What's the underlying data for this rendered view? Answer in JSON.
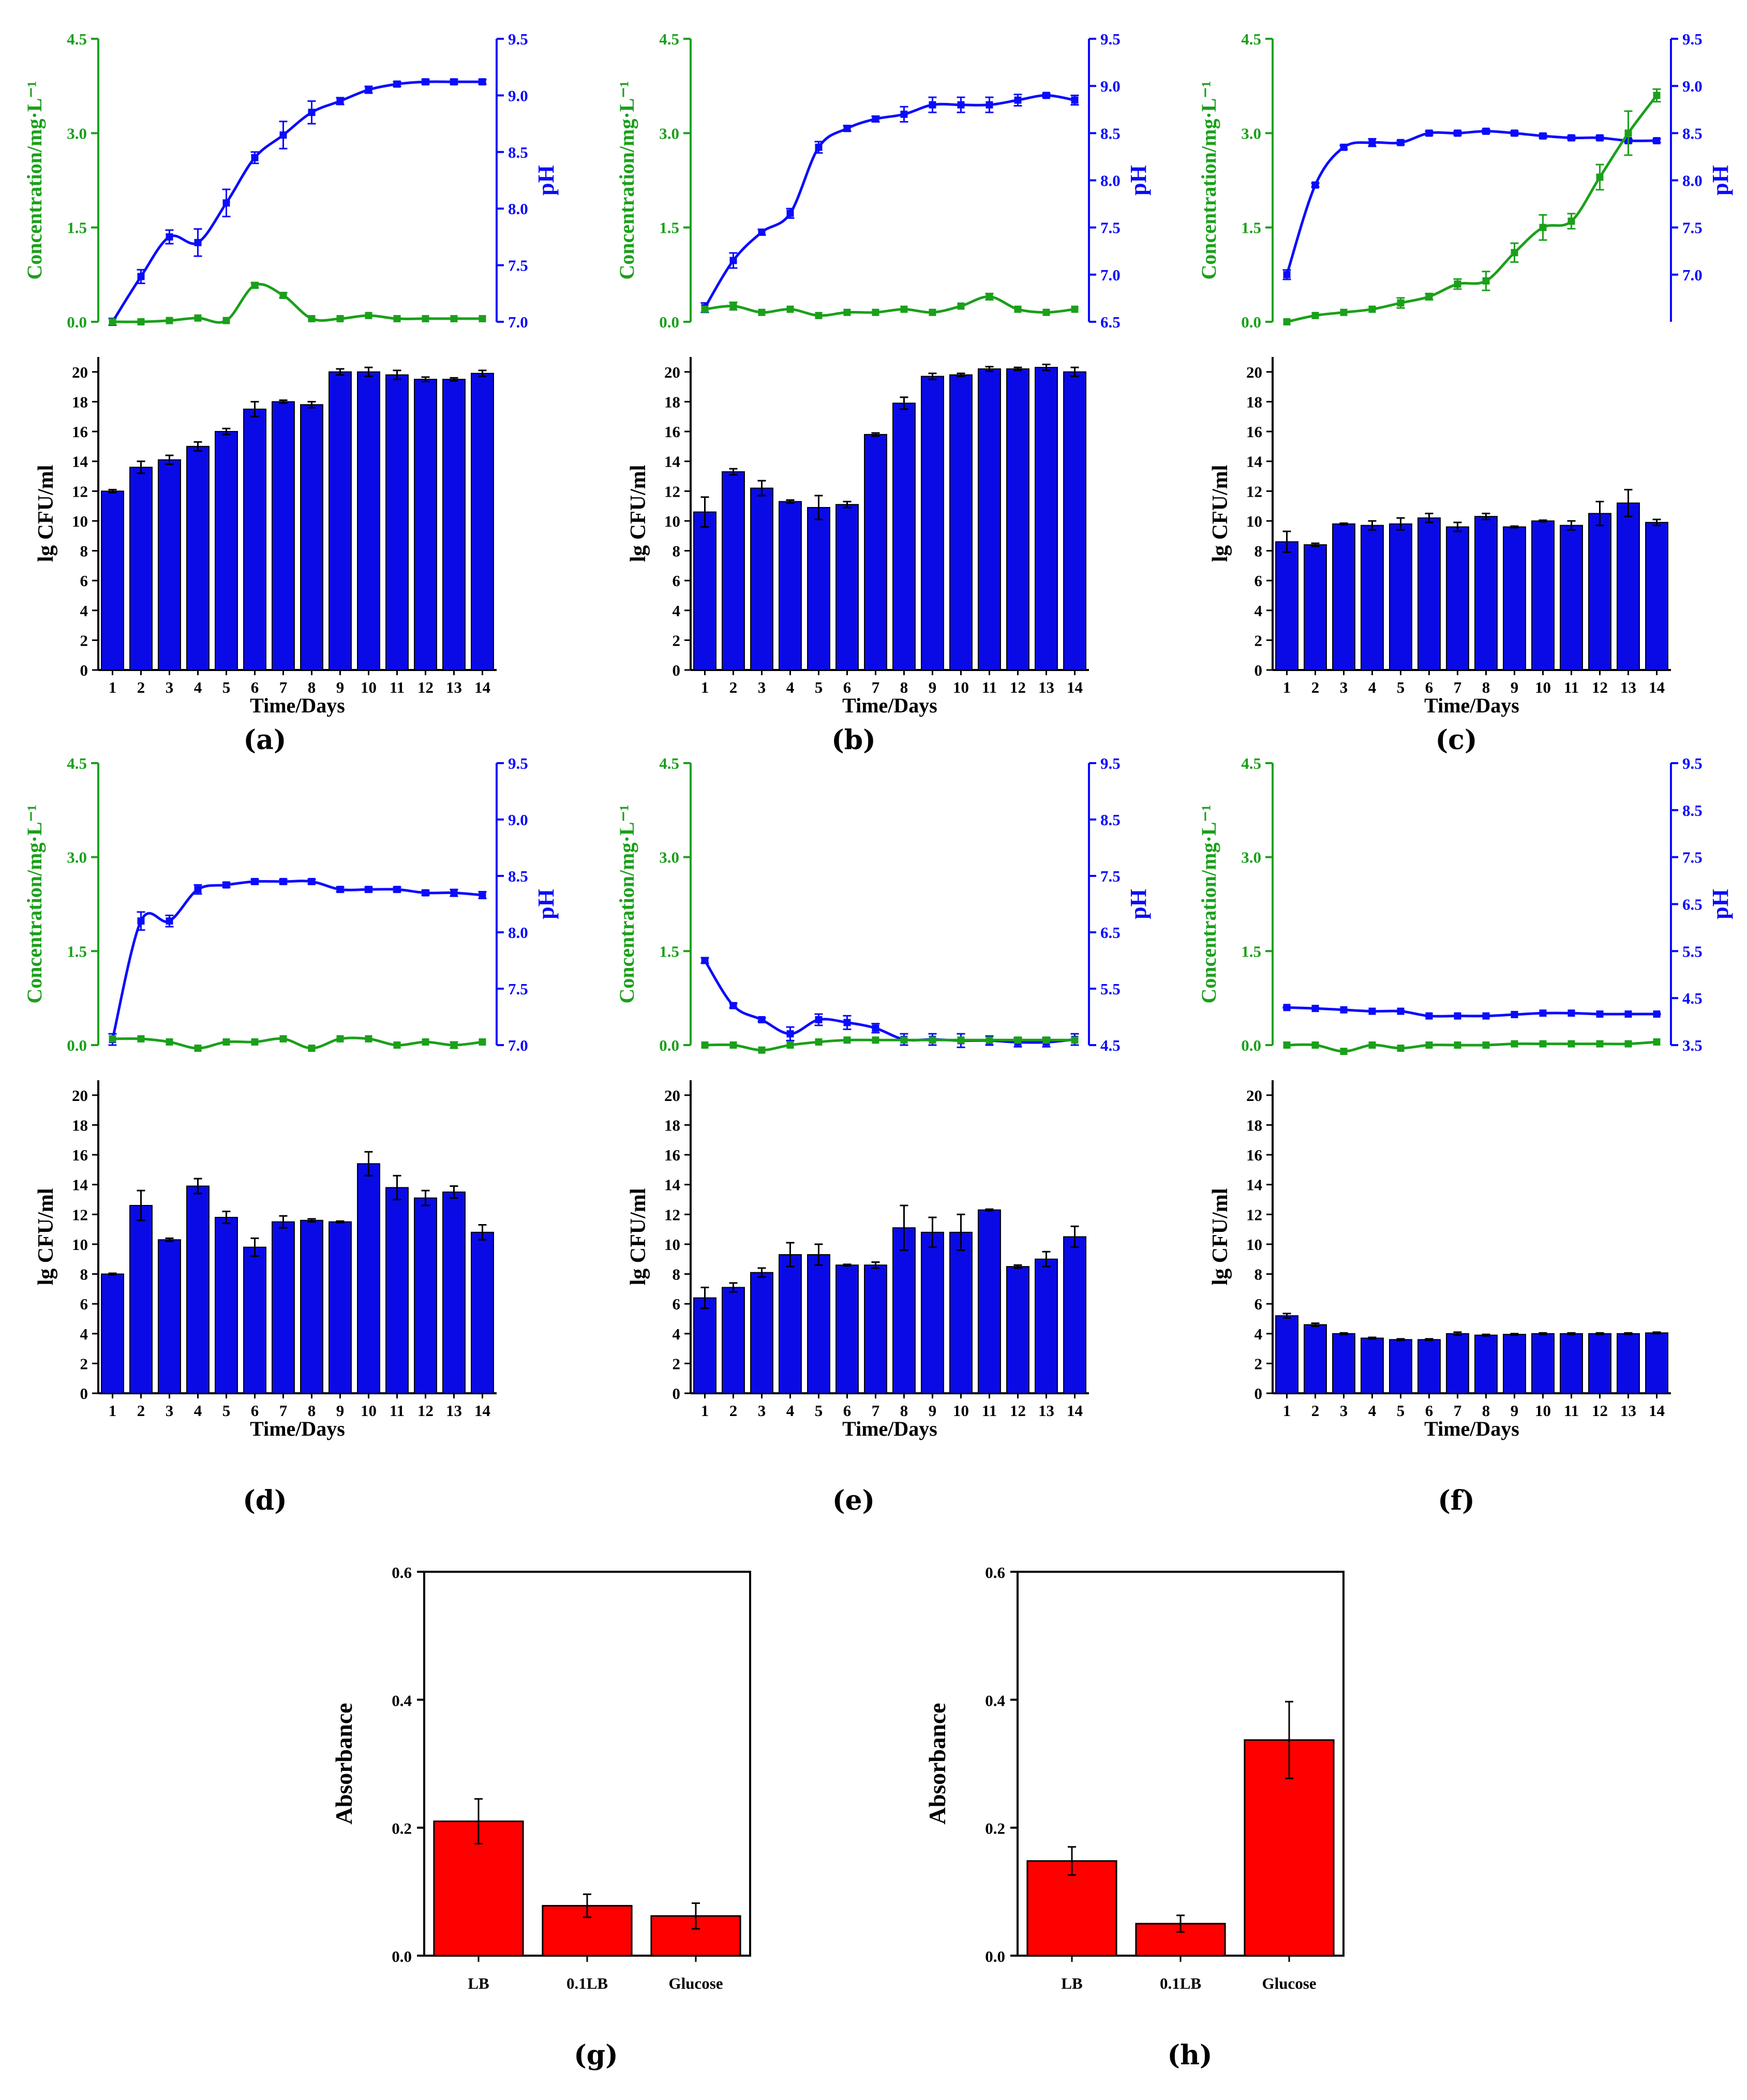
{
  "colors": {
    "concentration": "#1aa01a",
    "ph": "#0a0aff",
    "cfu_bar": "#0a0ae6",
    "abs_bar": "#ff0000",
    "axis": "#000000"
  },
  "chart_data": [
    {
      "id": "a",
      "caption": "(a)",
      "type": "line+bar",
      "xlabel": "Time/Days",
      "x": [
        1,
        2,
        3,
        4,
        5,
        6,
        7,
        8,
        9,
        10,
        11,
        12,
        13,
        14
      ],
      "top": {
        "left_axis": {
          "label": "Concentration/mg·L⁻¹",
          "ylim": [
            0,
            4.5
          ],
          "ticks": [
            "0.0",
            "1.5",
            "3.0",
            "4.5"
          ]
        },
        "right_axis": {
          "label": "pH",
          "ylim": [
            7.0,
            9.5
          ],
          "ticks": [
            "7.0",
            "7.5",
            "8.0",
            "8.5",
            "9.0",
            "9.5"
          ]
        },
        "concentration": [
          0.0,
          0.0,
          0.02,
          0.06,
          0.02,
          0.58,
          0.42,
          0.05,
          0.05,
          0.1,
          0.05,
          0.05,
          0.05,
          0.05
        ],
        "concentration_err": [
          0,
          0,
          0,
          0,
          0,
          0.04,
          0.04,
          0,
          0,
          0,
          0,
          0,
          0,
          0
        ],
        "ph": [
          7.0,
          7.4,
          7.75,
          7.7,
          8.05,
          8.45,
          8.65,
          8.85,
          8.95,
          9.05,
          9.1,
          9.12,
          9.12,
          9.12
        ],
        "ph_err": [
          0.03,
          0.06,
          0.06,
          0.12,
          0.12,
          0.05,
          0.12,
          0.1,
          0.03,
          0.03,
          0.02,
          0.02,
          0.02,
          0.02
        ]
      },
      "bottom": {
        "ylabel": "lg CFU/ml",
        "ylim": [
          0,
          21
        ],
        "ticks": [
          "0",
          "2",
          "4",
          "6",
          "8",
          "10",
          "12",
          "14",
          "16",
          "18",
          "20"
        ],
        "values": [
          12.0,
          13.6,
          14.1,
          15.0,
          16.0,
          17.5,
          18.0,
          17.8,
          20.0,
          20.0,
          19.8,
          19.5,
          19.5,
          19.9
        ],
        "errors": [
          0.1,
          0.4,
          0.3,
          0.3,
          0.2,
          0.5,
          0.1,
          0.2,
          0.2,
          0.3,
          0.3,
          0.15,
          0.1,
          0.2
        ]
      }
    },
    {
      "id": "b",
      "caption": "(b)",
      "type": "line+bar",
      "xlabel": "Time/Days",
      "x": [
        1,
        2,
        3,
        4,
        5,
        6,
        7,
        8,
        9,
        10,
        11,
        12,
        13,
        14
      ],
      "top": {
        "left_axis": {
          "label": "Concentration/mg·L⁻¹",
          "ylim": [
            0,
            4.5
          ],
          "ticks": [
            "0.0",
            "1.5",
            "3.0",
            "4.5"
          ]
        },
        "right_axis": {
          "label": "pH",
          "ylim": [
            6.5,
            9.5
          ],
          "ticks": [
            "6.5",
            "7.0",
            "7.5",
            "8.0",
            "8.5",
            "9.0",
            "9.5"
          ]
        },
        "concentration": [
          0.2,
          0.25,
          0.15,
          0.2,
          0.1,
          0.15,
          0.15,
          0.2,
          0.15,
          0.25,
          0.4,
          0.2,
          0.15,
          0.2
        ],
        "concentration_err": [
          0,
          0.06,
          0,
          0,
          0,
          0,
          0,
          0,
          0,
          0,
          0.05,
          0,
          0,
          0
        ],
        "ph": [
          6.65,
          7.15,
          7.45,
          7.65,
          8.35,
          8.55,
          8.65,
          8.7,
          8.8,
          8.8,
          8.8,
          8.85,
          8.9,
          8.85
        ],
        "ph_err": [
          0.05,
          0.08,
          0.03,
          0.05,
          0.06,
          0.03,
          0.03,
          0.08,
          0.08,
          0.08,
          0.08,
          0.06,
          0.02,
          0.05
        ]
      },
      "bottom": {
        "ylabel": "lg CFU/ml",
        "ylim": [
          0,
          21
        ],
        "ticks": [
          "0",
          "2",
          "4",
          "6",
          "8",
          "10",
          "12",
          "14",
          "16",
          "18",
          "20"
        ],
        "values": [
          10.6,
          13.3,
          12.2,
          11.3,
          10.9,
          11.1,
          15.8,
          17.9,
          19.7,
          19.8,
          20.2,
          20.2,
          20.3,
          20.0
        ],
        "errors": [
          1.0,
          0.2,
          0.5,
          0.1,
          0.8,
          0.2,
          0.1,
          0.4,
          0.2,
          0.1,
          0.15,
          0.1,
          0.2,
          0.3
        ]
      }
    },
    {
      "id": "c",
      "caption": "(c)",
      "type": "line+bar",
      "xlabel": "Time/Days",
      "x": [
        1,
        2,
        3,
        4,
        5,
        6,
        7,
        8,
        9,
        10,
        11,
        12,
        13,
        14
      ],
      "top": {
        "left_axis": {
          "label": "Concentration/mg·L⁻¹",
          "ylim": [
            0,
            4.5
          ],
          "ticks": [
            "0.0",
            "1.5",
            "3.0",
            "4.5"
          ]
        },
        "right_axis": {
          "label": "pH",
          "ylim": [
            6.5,
            9.5
          ],
          "ticks": [
            "7.0",
            "7.5",
            "8.0",
            "8.5",
            "9.0",
            "9.5"
          ]
        },
        "concentration": [
          0.0,
          0.1,
          0.15,
          0.2,
          0.3,
          0.4,
          0.6,
          0.65,
          1.1,
          1.5,
          1.6,
          2.3,
          3.0,
          3.6
        ],
        "concentration_err": [
          0,
          0,
          0,
          0,
          0.08,
          0.05,
          0.08,
          0.15,
          0.15,
          0.2,
          0.12,
          0.2,
          0.35,
          0.1
        ],
        "ph": [
          7.0,
          7.95,
          8.35,
          8.4,
          8.4,
          8.5,
          8.5,
          8.52,
          8.5,
          8.47,
          8.45,
          8.45,
          8.42,
          8.42
        ],
        "ph_err": [
          0.05,
          0.02,
          0.02,
          0.04,
          0.02,
          0.02,
          0.02,
          0.02,
          0.02,
          0.02,
          0.02,
          0.02,
          0.02,
          0.02
        ]
      },
      "bottom": {
        "ylabel": "lg CFU/ml",
        "ylim": [
          0,
          21
        ],
        "ticks": [
          "0",
          "2",
          "4",
          "6",
          "8",
          "10",
          "12",
          "14",
          "16",
          "18",
          "20"
        ],
        "values": [
          8.6,
          8.4,
          9.8,
          9.7,
          9.8,
          10.2,
          9.6,
          10.3,
          9.6,
          10.0,
          9.7,
          10.5,
          11.2,
          9.9
        ],
        "errors": [
          0.7,
          0.1,
          0.05,
          0.3,
          0.4,
          0.3,
          0.3,
          0.2,
          0.05,
          0.05,
          0.3,
          0.8,
          0.9,
          0.2
        ]
      }
    },
    {
      "id": "d",
      "caption": "(d)",
      "type": "line+bar",
      "xlabel": "Time/Days",
      "x": [
        1,
        2,
        3,
        4,
        5,
        6,
        7,
        8,
        9,
        10,
        11,
        12,
        13,
        14
      ],
      "top": {
        "left_axis": {
          "label": "Concentration/mg·L⁻¹",
          "ylim": [
            0,
            4.5
          ],
          "ticks": [
            "0.0",
            "1.5",
            "3.0",
            "4.5"
          ]
        },
        "right_axis": {
          "label": "pH",
          "ylim": [
            7.0,
            9.5
          ],
          "ticks": [
            "7.0",
            "7.5",
            "8.0",
            "8.5",
            "9.0",
            "9.5"
          ]
        },
        "concentration": [
          0.1,
          0.1,
          0.05,
          -0.05,
          0.05,
          0.05,
          0.1,
          -0.05,
          0.1,
          0.1,
          0.0,
          0.05,
          0.0,
          0.05
        ],
        "concentration_err": [
          0,
          0,
          0,
          0,
          0,
          0,
          0,
          0,
          0,
          0,
          0,
          0,
          0.05,
          0
        ],
        "ph": [
          7.05,
          8.1,
          8.1,
          8.38,
          8.42,
          8.45,
          8.45,
          8.45,
          8.38,
          8.38,
          8.38,
          8.35,
          8.35,
          8.33
        ],
        "ph_err": [
          0.05,
          0.08,
          0.05,
          0.04,
          0.02,
          0.02,
          0.02,
          0.02,
          0.02,
          0.02,
          0.02,
          0.02,
          0.03,
          0.03
        ]
      },
      "bottom": {
        "ylabel": "lg CFU/ml",
        "ylim": [
          0,
          21
        ],
        "ticks": [
          "0",
          "2",
          "4",
          "6",
          "8",
          "10",
          "12",
          "14",
          "16",
          "18",
          "20"
        ],
        "values": [
          8.0,
          12.6,
          10.3,
          13.9,
          11.8,
          9.8,
          11.5,
          11.6,
          11.5,
          15.4,
          13.8,
          13.1,
          13.5,
          10.8
        ],
        "errors": [
          0.05,
          1.0,
          0.1,
          0.5,
          0.4,
          0.6,
          0.4,
          0.1,
          0.05,
          0.8,
          0.8,
          0.5,
          0.4,
          0.5
        ]
      }
    },
    {
      "id": "e",
      "caption": "(e)",
      "type": "line+bar",
      "xlabel": "Time/Days",
      "x": [
        1,
        2,
        3,
        4,
        5,
        6,
        7,
        8,
        9,
        10,
        11,
        12,
        13,
        14
      ],
      "top": {
        "left_axis": {
          "label": "Concentration/mg·L⁻¹",
          "ylim": [
            0,
            4.5
          ],
          "ticks": [
            "0.0",
            "1.5",
            "3.0",
            "4.5"
          ]
        },
        "right_axis": {
          "label": "pH",
          "ylim": [
            4.5,
            9.5
          ],
          "ticks": [
            "4.5",
            "5.5",
            "6.5",
            "7.5",
            "8.5",
            "9.5"
          ]
        },
        "concentration": [
          0.0,
          0.0,
          -0.08,
          0.0,
          0.05,
          0.08,
          0.08,
          0.08,
          0.08,
          0.08,
          0.08,
          0.08,
          0.08,
          0.08
        ],
        "concentration_err": [
          0,
          0,
          0,
          0,
          0,
          0,
          0,
          0,
          0,
          0,
          0,
          0,
          0,
          0
        ],
        "ph": [
          6.0,
          5.2,
          4.95,
          4.7,
          4.95,
          4.9,
          4.8,
          4.6,
          4.6,
          4.58,
          4.58,
          4.55,
          4.55,
          4.6
        ],
        "ph_err": [
          0.05,
          0.04,
          0.03,
          0.12,
          0.1,
          0.12,
          0.08,
          0.1,
          0.1,
          0.12,
          0.08,
          0.08,
          0.08,
          0.1
        ]
      },
      "bottom": {
        "ylabel": "lg CFU/ml",
        "ylim": [
          0,
          21
        ],
        "ticks": [
          "0",
          "2",
          "4",
          "6",
          "8",
          "10",
          "12",
          "14",
          "16",
          "18",
          "20"
        ],
        "values": [
          6.4,
          7.1,
          8.1,
          9.3,
          9.3,
          8.6,
          8.6,
          11.1,
          10.8,
          10.8,
          12.3,
          8.5,
          9.0,
          10.5
        ],
        "errors": [
          0.7,
          0.3,
          0.3,
          0.8,
          0.7,
          0.05,
          0.2,
          1.5,
          1.0,
          1.2,
          0.05,
          0.1,
          0.5,
          0.7
        ]
      }
    },
    {
      "id": "f",
      "caption": "(f)",
      "type": "line+bar",
      "xlabel": "Time/Days",
      "x": [
        1,
        2,
        3,
        4,
        5,
        6,
        7,
        8,
        9,
        10,
        11,
        12,
        13,
        14
      ],
      "top": {
        "left_axis": {
          "label": "Concentration/mg·L⁻¹",
          "ylim": [
            0,
            4.5
          ],
          "ticks": [
            "0.0",
            "1.5",
            "3.0",
            "4.5"
          ]
        },
        "right_axis": {
          "label": "pH",
          "ylim": [
            3.5,
            9.5
          ],
          "ticks": [
            "3.5",
            "4.5",
            "5.5",
            "6.5",
            "7.5",
            "8.5",
            "9.5"
          ]
        },
        "concentration": [
          0.0,
          0.0,
          -0.1,
          0.0,
          -0.05,
          0.0,
          0.0,
          0.0,
          0.02,
          0.02,
          0.02,
          0.02,
          0.02,
          0.05
        ],
        "concentration_err": [
          0,
          0,
          0,
          0,
          0,
          0,
          0,
          0,
          0,
          0,
          0,
          0,
          0,
          0
        ],
        "ph": [
          4.3,
          4.28,
          4.25,
          4.22,
          4.22,
          4.12,
          4.12,
          4.12,
          4.15,
          4.18,
          4.18,
          4.16,
          4.16,
          4.16
        ],
        "ph_err": [
          0.01,
          0.01,
          0.01,
          0.01,
          0.01,
          0.01,
          0.01,
          0.01,
          0.01,
          0.01,
          0.01,
          0.01,
          0.01,
          0.01
        ]
      },
      "bottom": {
        "ylabel": "lg CFU/ml",
        "ylim": [
          0,
          21
        ],
        "ticks": [
          "0",
          "2",
          "4",
          "6",
          "8",
          "10",
          "12",
          "14",
          "16",
          "18",
          "20"
        ],
        "values": [
          5.2,
          4.6,
          4.0,
          3.7,
          3.6,
          3.6,
          4.0,
          3.9,
          3.95,
          4.0,
          4.0,
          4.0,
          4.0,
          4.05
        ],
        "errors": [
          0.15,
          0.1,
          0.05,
          0.05,
          0.05,
          0.05,
          0.1,
          0.05,
          0.05,
          0.05,
          0.05,
          0.05,
          0.05,
          0.05
        ]
      }
    },
    {
      "id": "g",
      "caption": "(g)",
      "type": "bar",
      "categories": [
        "LB",
        "0.1LB",
        "Glucose"
      ],
      "values": [
        0.21,
        0.078,
        0.062
      ],
      "errors": [
        0.035,
        0.018,
        0.02
      ],
      "ylabel": "Absorbance",
      "ylim": [
        0,
        0.6
      ],
      "ticks": [
        "0.0",
        "0.2",
        "0.4",
        "0.6"
      ]
    },
    {
      "id": "h",
      "caption": "(h)",
      "type": "bar",
      "categories": [
        "LB",
        "0.1LB",
        "Glucose"
      ],
      "values": [
        0.148,
        0.05,
        0.337
      ],
      "errors": [
        0.022,
        0.013,
        0.06
      ],
      "ylabel": "Absorbance",
      "ylim": [
        0,
        0.6
      ],
      "ticks": [
        "0.0",
        "0.2",
        "0.4",
        "0.6"
      ]
    }
  ]
}
